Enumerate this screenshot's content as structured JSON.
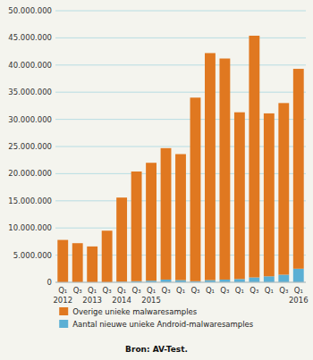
{
  "chart_data": {
    "type": "bar",
    "stacked": true,
    "grid": true,
    "categories": [
      "Q₁\n2012",
      "Q₃",
      "Q₁\n2013",
      "Q₃",
      "Q₁\n2014",
      "Q₃",
      "Q₁\n2015",
      "Q₃",
      "Q₁",
      "Q₃",
      "Q₁",
      "Q₃",
      "Q₁",
      "Q₃",
      "Q₁",
      "Q₃",
      "Q₁\n2016"
    ],
    "series": [
      {
        "name": "Aantal nieuwe unieke Android-malwaresamples",
        "color": "#5BAFD4",
        "values": [
          0,
          0,
          0,
          0,
          100000,
          200000,
          300000,
          500000,
          400000,
          200000,
          400000,
          500000,
          600000,
          900000,
          1100000,
          1400000,
          2500000
        ]
      },
      {
        "name": "Overige unieke malwaresamples",
        "color": "#E07820",
        "values": [
          7800000,
          7200000,
          6600000,
          9500000,
          15500000,
          20200000,
          21700000,
          24200000,
          23200000,
          33800000,
          41800000,
          40700000,
          30700000,
          44500000,
          30000000,
          31600000,
          36800000
        ]
      }
    ],
    "ylim": [
      0,
      50000000
    ],
    "yticks": [
      0,
      {
        "value": 5000000,
        "label": "5.000.000"
      },
      {
        "value": 10000000,
        "label": "10.000.000"
      },
      {
        "value": 15000000,
        "label": "15.000.000"
      },
      {
        "value": 20000000,
        "label": "20.000.000"
      },
      {
        "value": 25000000,
        "label": "25.000.000"
      },
      {
        "value": 30000000,
        "label": "30.000.000"
      },
      {
        "value": 35000000,
        "label": "35.000.000"
      },
      {
        "value": 40000000,
        "label": "40.000.000"
      },
      {
        "value": 45000000,
        "label": "45.000.000"
      },
      {
        "value": 50000000,
        "label": "50.000.000"
      }
    ],
    "annotations": [
      "Bron: AV-Test."
    ]
  }
}
